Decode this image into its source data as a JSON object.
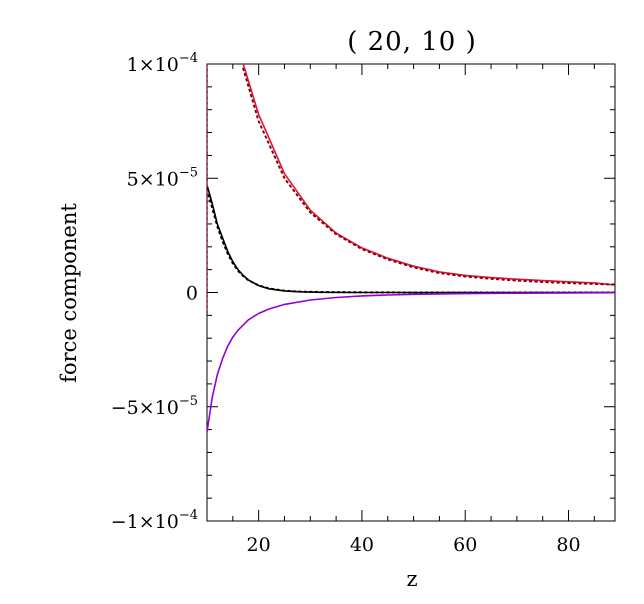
{
  "chart_data": {
    "type": "line",
    "title": "( 20, 10 )",
    "xlabel": "z",
    "ylabel": "force component",
    "xlim": [
      10,
      89
    ],
    "ylim": [
      -0.0001,
      0.0001
    ],
    "grid": false,
    "x_ticks": [
      20,
      40,
      60,
      80
    ],
    "x_tick_labels": [
      "20",
      "40",
      "60",
      "80"
    ],
    "y_ticks": [
      -0.0001,
      -5e-05,
      0,
      5e-05,
      0.0001
    ],
    "y_tick_labels": [
      {
        "mant": "−1×10",
        "exp": "−4"
      },
      {
        "mant": "−5×10",
        "exp": "−5"
      },
      {
        "mant": "0",
        "exp": ""
      },
      {
        "mant": "5×10",
        "exp": "−5"
      },
      {
        "mant": "1×10",
        "exp": "−4"
      }
    ],
    "series": [
      {
        "color": "#dc143c",
        "style": "solid",
        "x": [
          17,
          20,
          25,
          30,
          35,
          40,
          45,
          50,
          55,
          60,
          65,
          70,
          75,
          80,
          85,
          89
        ],
        "y": [
          0.0001,
          7.8e-05,
          5.2e-05,
          3.6e-05,
          2.6e-05,
          1.95e-05,
          1.5e-05,
          1.15e-05,
          9e-06,
          7.5e-06,
          6.5e-06,
          5.8e-06,
          5.2e-06,
          4.7e-06,
          4.2e-06,
          3.3e-06
        ]
      },
      {
        "color": "#8b0000",
        "style": "dotted",
        "x": [
          17,
          20,
          25,
          30,
          35,
          40,
          45,
          50,
          55,
          60,
          65,
          70,
          75,
          80,
          85,
          89
        ],
        "y": [
          9.8e-05,
          7.5e-05,
          5e-05,
          3.5e-05,
          2.55e-05,
          1.9e-05,
          1.45e-05,
          1.1e-05,
          8.5e-06,
          7e-06,
          6e-06,
          5.2e-06,
          4.6e-06,
          4.1e-06,
          3.7e-06,
          3.5e-06
        ]
      },
      {
        "color": "#000000",
        "style": "solid",
        "x": [
          10,
          11,
          12,
          13,
          14,
          15,
          16,
          17,
          18,
          20,
          22,
          25,
          28,
          32,
          40,
          50,
          60,
          70,
          80,
          89
        ],
        "y": [
          4.7e-05,
          3.9e-05,
          3e-05,
          2.4e-05,
          1.8e-05,
          1.35e-05,
          1e-05,
          7.5e-06,
          5.5e-06,
          3e-06,
          1.6e-06,
          7e-07,
          3e-07,
          1e-07,
          0,
          0,
          0,
          0,
          0,
          0
        ]
      },
      {
        "color": "#000000",
        "style": "dotted",
        "x": [
          10,
          11,
          12,
          13,
          14,
          15,
          16,
          17,
          18,
          20,
          22,
          25,
          28,
          32,
          40,
          50,
          60,
          70,
          80,
          89
        ],
        "y": [
          4.5e-05,
          3.7e-05,
          2.9e-05,
          2.25e-05,
          1.7e-05,
          1.28e-05,
          9.5e-06,
          7.2e-06,
          5.4e-06,
          3.1e-06,
          1.8e-06,
          8e-07,
          4e-07,
          2e-07,
          1e-07,
          0,
          0,
          0,
          0,
          0
        ]
      },
      {
        "color": "#9400d3",
        "style": "solid",
        "x": [
          10,
          11,
          12,
          13,
          14,
          15,
          16,
          18,
          20,
          22,
          25,
          30,
          35,
          40,
          45,
          50,
          60,
          70,
          80,
          89
        ],
        "y": [
          -6.1e-05,
          -4.6e-05,
          -3.6e-05,
          -2.9e-05,
          -2.35e-05,
          -1.95e-05,
          -1.65e-05,
          -1.2e-05,
          -9.2e-06,
          -7.2e-06,
          -5.2e-06,
          -3.3e-06,
          -2.2e-06,
          -1.5e-06,
          -1.1e-06,
          -8e-07,
          -5e-07,
          -3e-07,
          -2e-07,
          -1e-07
        ]
      },
      {
        "color": "#dc143c",
        "style": "dotted",
        "x": [
          10,
          10
        ],
        "y": [
          0.0001,
          -1e-05
        ]
      }
    ]
  }
}
